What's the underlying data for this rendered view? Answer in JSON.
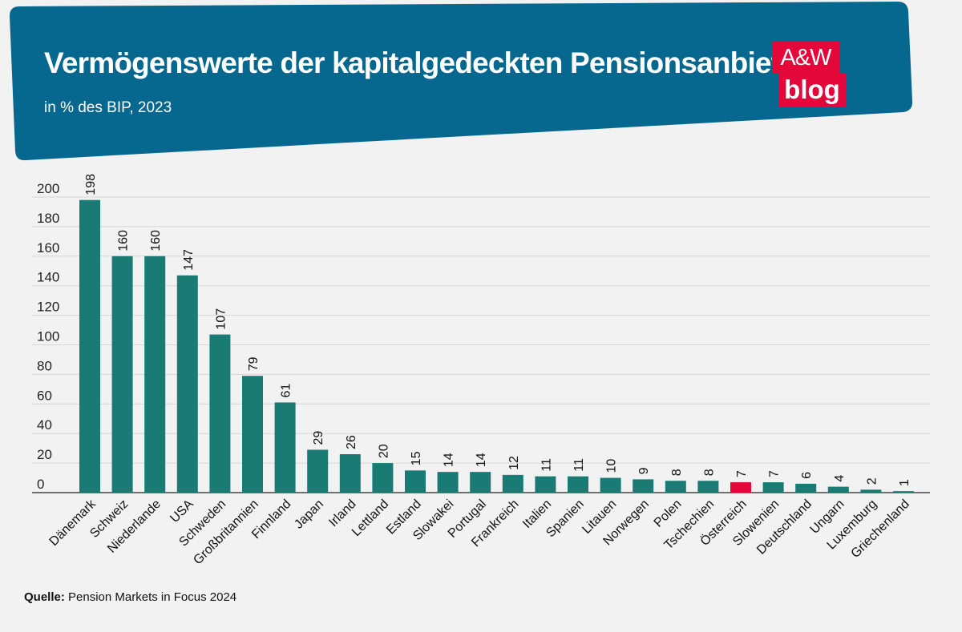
{
  "header": {
    "title": "Vermögenswerte der kapitalgedeckten Pensionsanbieter",
    "subtitle": "in % des BIP, 2023",
    "banner_color": "#06678f"
  },
  "logo": {
    "line1": "A&W",
    "line2": "blog",
    "color": "#e4073a"
  },
  "source": {
    "label": "Quelle:",
    "text": "Pension Markets in Focus 2024"
  },
  "chart_data": {
    "type": "bar",
    "title": "Vermögenswerte der kapitalgedeckten Pensionsanbieter",
    "subtitle": "in % des BIP, 2023",
    "xlabel": "",
    "ylabel": "",
    "ylim": [
      0,
      200
    ],
    "yticks": [
      0,
      20,
      40,
      60,
      80,
      100,
      120,
      140,
      160,
      180,
      200
    ],
    "grid": true,
    "bar_color": "#1a7a74",
    "highlight_color": "#e4073a",
    "highlight_category": "Österreich",
    "categories": [
      "Dänemark",
      "Schweiz",
      "Niederlande",
      "USA",
      "Schweden",
      "Großbritannien",
      "Finnland",
      "Japan",
      "Irland",
      "Lettland",
      "Estland",
      "Slowakei",
      "Portugal",
      "Frankreich",
      "Italien",
      "Spanien",
      "Litauen",
      "Norwegen",
      "Polen",
      "Tschechien",
      "Österreich",
      "Slowenien",
      "Deutschland",
      "Ungarn",
      "Luxemburg",
      "Griechenland"
    ],
    "values": [
      198,
      160,
      160,
      147,
      107,
      79,
      61,
      29,
      26,
      20,
      15,
      14,
      14,
      12,
      11,
      11,
      10,
      9,
      8,
      8,
      7,
      7,
      6,
      4,
      2,
      1
    ]
  }
}
